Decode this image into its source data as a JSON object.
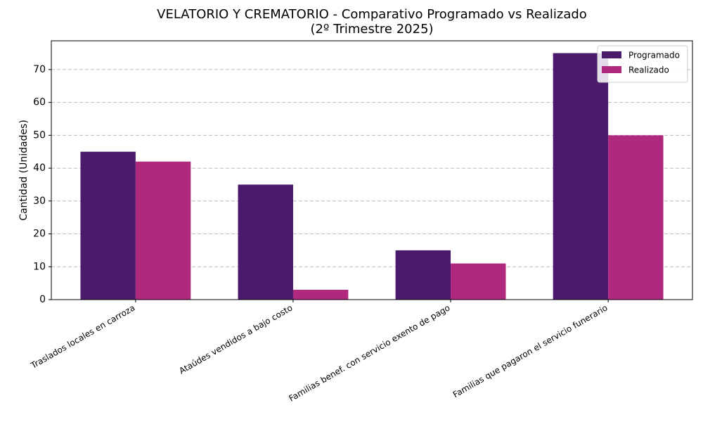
{
  "chart_data": {
    "type": "bar",
    "title": "VELATORIO Y CREMATORIO - Comparativo Programado vs Realizado\n(2º Trimestre 2025)",
    "y_label": "Cantidad (Unidades)",
    "categories": [
      "Traslados locales en carroza",
      "Ataúdes vendidos a bajo costo",
      "Familias benef. con servicio exento de pago",
      "Familias que pagaron el servicio funerario"
    ],
    "series": [
      {
        "name": "Programado",
        "color": "#4a1a6b",
        "values": [
          45,
          35,
          15,
          75
        ]
      },
      {
        "name": "Realizado",
        "color": "#b0297e",
        "values": [
          42,
          3,
          11,
          50
        ]
      }
    ],
    "ylim": [
      0,
      78.75
    ],
    "yticks": [
      0,
      10,
      20,
      30,
      40,
      50,
      60,
      70
    ],
    "grid": true,
    "legend": "upper right"
  }
}
